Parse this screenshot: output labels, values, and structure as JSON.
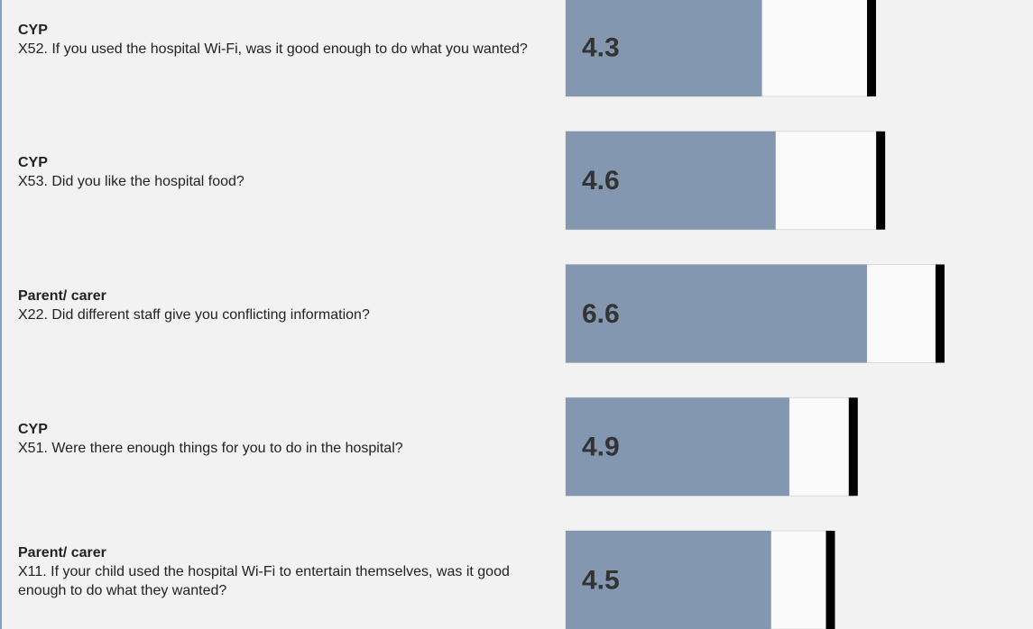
{
  "chart_data": {
    "type": "bullet",
    "groups": [
      "CYP",
      "CYP",
      "Parent/ carer",
      "CYP",
      "Parent/ carer"
    ],
    "categories": [
      "X52. If you used the hospital Wi-Fi, was it good enough to do what you wanted?",
      "X53. Did you like the hospital food?",
      "X22. Did different staff give you conflicting information?",
      "X51. Were there enough things for you to do in the hospital?",
      "X11. If your child used the hospital Wi-Fi to entertain themselves, was it good enough to do what they wanted?"
    ],
    "series": [
      {
        "color": "#8497b0",
        "values": [
          4.3,
          4.6,
          6.6,
          4.9,
          4.5
        ]
      },
      {
        "color": "#000000",
        "values": [
          6.7,
          6.9,
          8.2,
          6.3,
          5.8
        ]
      }
    ],
    "xlim": [
      0,
      10
    ]
  }
}
